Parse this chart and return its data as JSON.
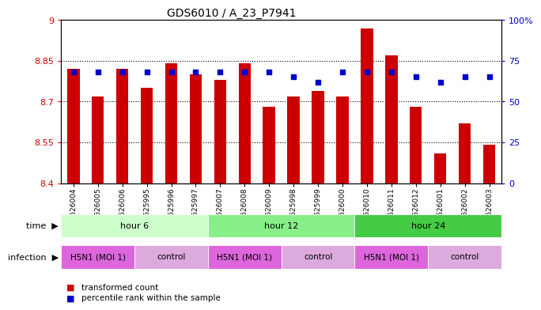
{
  "title": "GDS6010 / A_23_P7941",
  "samples": [
    "GSM1626004",
    "GSM1626005",
    "GSM1626006",
    "GSM1625995",
    "GSM1625996",
    "GSM1625997",
    "GSM1626007",
    "GSM1626008",
    "GSM1626009",
    "GSM1625998",
    "GSM1625999",
    "GSM1626000",
    "GSM1626010",
    "GSM1626011",
    "GSM1626012",
    "GSM1626001",
    "GSM1626002",
    "GSM1626003"
  ],
  "transformed_count": [
    8.82,
    8.72,
    8.82,
    8.75,
    8.84,
    8.8,
    8.78,
    8.84,
    8.68,
    8.72,
    8.74,
    8.72,
    8.97,
    8.87,
    8.68,
    8.51,
    8.62,
    8.54
  ],
  "percentile_rank": [
    68,
    68,
    68,
    68,
    68,
    68,
    68,
    68,
    68,
    65,
    62,
    68,
    68,
    68,
    65,
    62,
    65,
    65
  ],
  "ymin": 8.4,
  "ymax": 9.0,
  "yticks": [
    8.4,
    8.55,
    8.7,
    8.85,
    9.0
  ],
  "ytick_labels": [
    "8.4",
    "8.55",
    "8.7",
    "8.85",
    "9"
  ],
  "right_yticks": [
    0,
    25,
    50,
    75,
    100
  ],
  "right_ytick_labels": [
    "0",
    "25",
    "50",
    "75",
    "100%"
  ],
  "bar_color": "#cc0000",
  "dot_color": "#0000cc",
  "bar_bottom": 8.4,
  "time_groups": [
    {
      "label": "hour 6",
      "start": 0,
      "end": 6,
      "color_key": "hour 6"
    },
    {
      "label": "hour 12",
      "start": 6,
      "end": 12,
      "color_key": "hour 12"
    },
    {
      "label": "hour 24",
      "start": 12,
      "end": 18,
      "color_key": "hour 24"
    }
  ],
  "infection_groups": [
    {
      "label": "H5N1 (MOI 1)",
      "start": 0,
      "end": 3
    },
    {
      "label": "control",
      "start": 3,
      "end": 6
    },
    {
      "label": "H5N1 (MOI 1)",
      "start": 6,
      "end": 9
    },
    {
      "label": "control",
      "start": 9,
      "end": 12
    },
    {
      "label": "H5N1 (MOI 1)",
      "start": 12,
      "end": 15
    },
    {
      "label": "control",
      "start": 15,
      "end": 18
    }
  ],
  "infection_colors": {
    "H5N1 (MOI 1)": "#dd66dd",
    "control": "#ddaadd"
  },
  "time_colors": {
    "hour 6": "#ccffcc",
    "hour 12": "#88ee88",
    "hour 24": "#44cc44"
  },
  "legend_items": [
    {
      "label": "transformed count",
      "color": "#cc0000"
    },
    {
      "label": "percentile rank within the sample",
      "color": "#0000cc"
    }
  ]
}
